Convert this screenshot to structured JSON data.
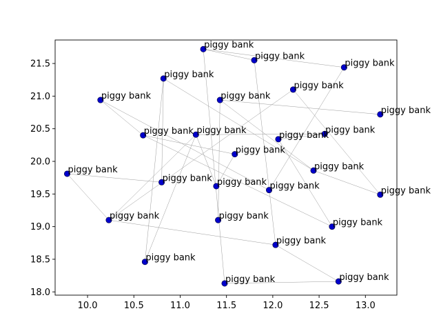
{
  "chart_data": {
    "type": "scatter",
    "title": "",
    "xlabel": "",
    "ylabel": "",
    "xlim": [
      9.65,
      13.34
    ],
    "ylim": [
      17.95,
      21.86
    ],
    "xticks": [
      "10.0",
      "10.5",
      "11.0",
      "11.5",
      "12.0",
      "12.5",
      "13.0"
    ],
    "yticks": [
      "18.0",
      "18.5",
      "19.0",
      "19.5",
      "20.0",
      "20.5",
      "21.0",
      "21.5"
    ],
    "xtick_values": [
      10.0,
      10.5,
      11.0,
      11.5,
      12.0,
      12.5,
      13.0
    ],
    "ytick_values": [
      18.0,
      18.5,
      19.0,
      19.5,
      20.0,
      20.5,
      21.0,
      21.5
    ],
    "grid": false,
    "legend": "none",
    "marker_color": "#0000cc",
    "edge_color": "#9a9a9a",
    "points": [
      {
        "x": 11.25,
        "y": 21.72,
        "label": "piggy bank"
      },
      {
        "x": 11.8,
        "y": 21.55,
        "label": "piggy bank"
      },
      {
        "x": 12.77,
        "y": 21.44,
        "label": "piggy bank"
      },
      {
        "x": 10.82,
        "y": 21.27,
        "label": "piggy bank"
      },
      {
        "x": 12.22,
        "y": 21.1,
        "label": "piggy bank"
      },
      {
        "x": 10.14,
        "y": 20.94,
        "label": "piggy bank"
      },
      {
        "x": 11.43,
        "y": 20.94,
        "label": "piggy bank"
      },
      {
        "x": 13.16,
        "y": 20.72,
        "label": "piggy bank"
      },
      {
        "x": 12.56,
        "y": 20.42,
        "label": "piggy bank"
      },
      {
        "x": 10.6,
        "y": 20.4,
        "label": "piggy bank"
      },
      {
        "x": 11.17,
        "y": 20.41,
        "label": "piggy bank"
      },
      {
        "x": 12.06,
        "y": 20.34,
        "label": "piggy bank"
      },
      {
        "x": 11.59,
        "y": 20.11,
        "label": "piggy bank"
      },
      {
        "x": 9.78,
        "y": 19.81,
        "label": "piggy bank"
      },
      {
        "x": 12.44,
        "y": 19.86,
        "label": "piggy bank"
      },
      {
        "x": 10.8,
        "y": 19.68,
        "label": "piggy bank"
      },
      {
        "x": 11.39,
        "y": 19.62,
        "label": "piggy bank"
      },
      {
        "x": 11.96,
        "y": 19.56,
        "label": "piggy bank"
      },
      {
        "x": 13.16,
        "y": 19.49,
        "label": "piggy bank"
      },
      {
        "x": 10.23,
        "y": 19.1,
        "label": "piggy bank"
      },
      {
        "x": 11.41,
        "y": 19.1,
        "label": "piggy bank"
      },
      {
        "x": 12.64,
        "y": 19.0,
        "label": "piggy bank"
      },
      {
        "x": 12.03,
        "y": 18.72,
        "label": "piggy bank"
      },
      {
        "x": 10.62,
        "y": 18.46,
        "label": "piggy bank"
      },
      {
        "x": 11.48,
        "y": 18.13,
        "label": "piggy bank"
      },
      {
        "x": 12.71,
        "y": 18.16,
        "label": "piggy bank"
      }
    ],
    "edges": [
      [
        0,
        1
      ],
      [
        0,
        2
      ],
      [
        0,
        24
      ],
      [
        1,
        22
      ],
      [
        2,
        17
      ],
      [
        3,
        14
      ],
      [
        3,
        23
      ],
      [
        4,
        18
      ],
      [
        4,
        19
      ],
      [
        5,
        9
      ],
      [
        5,
        17
      ],
      [
        6,
        7
      ],
      [
        6,
        14
      ],
      [
        6,
        20
      ],
      [
        8,
        10
      ],
      [
        8,
        11
      ],
      [
        9,
        21
      ],
      [
        10,
        19
      ],
      [
        10,
        23
      ],
      [
        11,
        21
      ],
      [
        12,
        16
      ],
      [
        12,
        9
      ],
      [
        13,
        15
      ],
      [
        13,
        19
      ],
      [
        14,
        18
      ],
      [
        15,
        3
      ],
      [
        16,
        10
      ],
      [
        19,
        22
      ],
      [
        22,
        25
      ],
      [
        24,
        25
      ]
    ]
  }
}
